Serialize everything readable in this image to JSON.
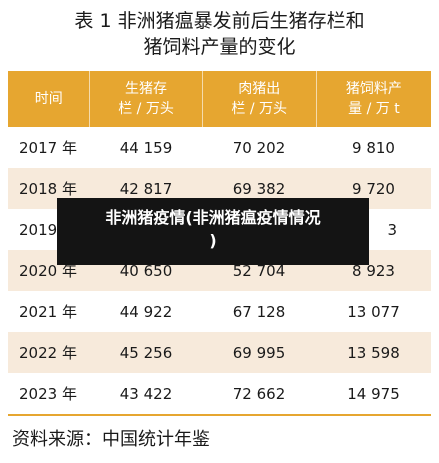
{
  "title": {
    "line1": "表 1  非洲猪瘟暴发前后生猪存栏和",
    "line2": "猪饲料产量的变化"
  },
  "table": {
    "headers": [
      {
        "line1": "时间",
        "line2": ""
      },
      {
        "line1": "生猪存",
        "line2": "栏 / 万头"
      },
      {
        "line1": "肉猪出",
        "line2": "栏 / 万头"
      },
      {
        "line1": "猪饲料产",
        "line2": "量 / 万 t"
      }
    ],
    "rows": [
      {
        "year": "2017 年",
        "c1": "44 159",
        "c2": "70 202",
        "c3": "9 810"
      },
      {
        "year": "2018 年",
        "c1": "42 817",
        "c2": "69 382",
        "c3": "9 720"
      },
      {
        "year": "2019",
        "c1": "",
        "c2": "",
        "c3": "3"
      },
      {
        "year": "2020 年",
        "c1": "40 650",
        "c2": "52 704",
        "c3": "8 923"
      },
      {
        "year": "2021 年",
        "c1": "44 922",
        "c2": "67 128",
        "c3": "13 077"
      },
      {
        "year": "2022 年",
        "c1": "45 256",
        "c2": "69 995",
        "c3": "13 598"
      },
      {
        "year": "2023 年",
        "c1": "43 422",
        "c2": "72 662",
        "c3": "14 975"
      }
    ]
  },
  "source": "资料来源：中国统计年鉴",
  "overlay": {
    "line1": "非洲猪疫情(非洲猪瘟疫情情况",
    "line2": ")"
  },
  "colors": {
    "header_bg": "#e6a630",
    "stripe_bg": "#f7eadb",
    "overlay_bg": "#141414"
  }
}
